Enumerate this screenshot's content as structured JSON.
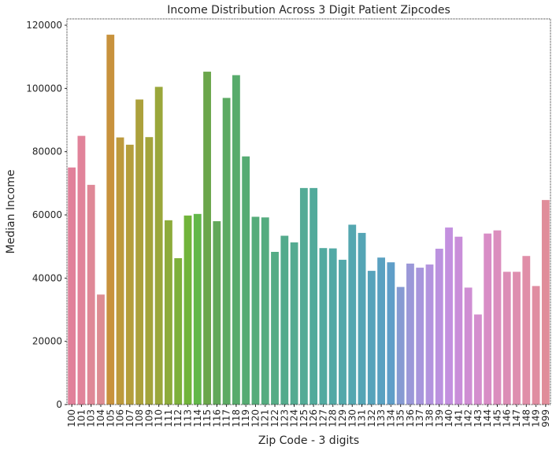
{
  "chart_data": {
    "type": "bar",
    "title": "Income Distribution Across 3 Digit Patient Zipcodes",
    "xlabel": "Zip Code - 3 digits",
    "ylabel": "Median Income",
    "ylim": [
      0,
      122000
    ],
    "yticks": [
      0,
      20000,
      40000,
      60000,
      80000,
      100000,
      120000
    ],
    "grid": false,
    "categories": [
      "100",
      "101",
      "103",
      "104",
      "105",
      "106",
      "107",
      "108",
      "109",
      "110",
      "111",
      "112",
      "113",
      "114",
      "115",
      "116",
      "117",
      "118",
      "119",
      "120",
      "121",
      "122",
      "123",
      "124",
      "125",
      "126",
      "127",
      "128",
      "129",
      "130",
      "131",
      "132",
      "133",
      "134",
      "135",
      "136",
      "137",
      "138",
      "139",
      "140",
      "141",
      "142",
      "143",
      "144",
      "145",
      "146",
      "147",
      "148",
      "149",
      "999"
    ],
    "values": [
      75000,
      85000,
      69500,
      34800,
      117000,
      84500,
      82200,
      96500,
      84600,
      100500,
      58300,
      46300,
      59800,
      60300,
      105300,
      58000,
      97000,
      104200,
      78500,
      59400,
      59200,
      48300,
      53400,
      51300,
      68500,
      68500,
      49500,
      49400,
      45800,
      56900,
      54300,
      42300,
      46500,
      45000,
      37200,
      44600,
      43300,
      44300,
      49300,
      56000,
      53100,
      37000,
      28500,
      54100,
      55100,
      42000,
      42000,
      47000,
      37500,
      64700
    ],
    "colors": [
      "#e1809a",
      "#e1839a",
      "#df8897",
      "#dd8c93",
      "#c8923d",
      "#bd9a3d",
      "#b59e3c",
      "#aca13c",
      "#a3a43b",
      "#9aa73b",
      "#8dab3b",
      "#7db03b",
      "#71b43b",
      "#62b84a",
      "#6ba64b",
      "#62a85a",
      "#5caa63",
      "#58ab6c",
      "#56ab73",
      "#55ac7a",
      "#55ac80",
      "#55ac86",
      "#54ab8c",
      "#54ab91",
      "#53ab96",
      "#52aa9b",
      "#52aaa0",
      "#52a9a5",
      "#53a8aa",
      "#54a7b0",
      "#55a5b5",
      "#57a3bb",
      "#5aa1c1",
      "#5f9ec8",
      "#869ad2",
      "#9b98d8",
      "#a896dc",
      "#b394de",
      "#bb92df",
      "#c390df",
      "#c98ed9",
      "#cf8ed3",
      "#d48ece",
      "#d88dc6",
      "#db8ebe",
      "#dc8eb6",
      "#de8eaf",
      "#e08ea8",
      "#e08da1",
      "#e08d9a"
    ]
  }
}
